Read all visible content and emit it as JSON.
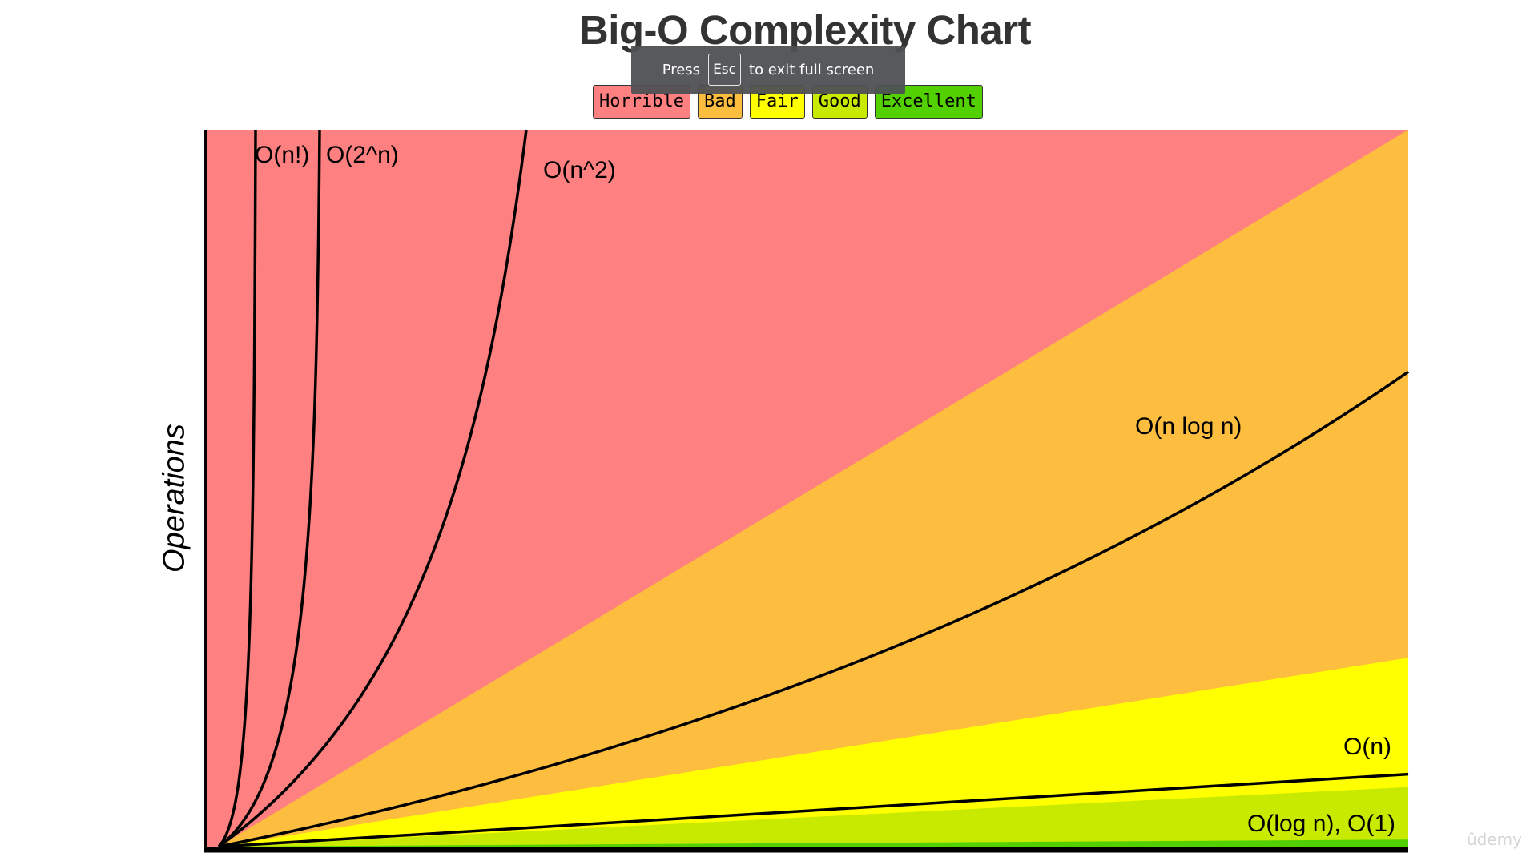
{
  "chart_data": {
    "type": "area",
    "title": "Big-O Complexity Chart",
    "ylabel": "Operations",
    "xlabel": "",
    "legend_position": "top-center",
    "legend": [
      {
        "label": "Horrible",
        "color": "#ff8080"
      },
      {
        "label": "Bad",
        "color": "#fdbd3f"
      },
      {
        "label": "Fair",
        "color": "#ffff00"
      },
      {
        "label": "Good",
        "color": "#c8ea00"
      },
      {
        "label": "Excellent",
        "color": "#53d000"
      }
    ],
    "curves": [
      {
        "label": "O(n!)",
        "function": "factorial"
      },
      {
        "label": "O(2^n)",
        "function": "exponential"
      },
      {
        "label": "O(n^2)",
        "function": "quadratic"
      },
      {
        "label": "O(n log n)",
        "function": "linearithmic"
      },
      {
        "label": "O(n)",
        "function": "linear"
      },
      {
        "label": "O(log n), O(1)",
        "function": "logarithmic-constant"
      }
    ]
  },
  "overlay": {
    "press": "Press",
    "key": "Esc",
    "message": "to exit full screen"
  },
  "watermark": "ûdemy"
}
